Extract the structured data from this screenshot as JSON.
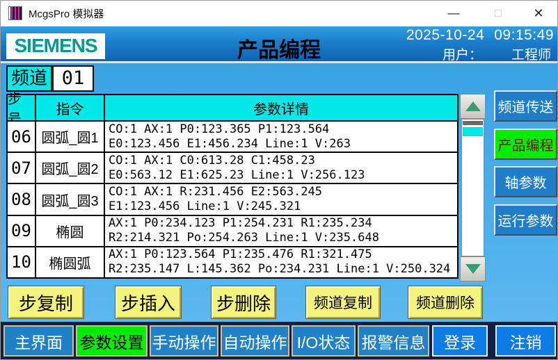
{
  "window": {
    "title": "McgsPro 模拟器",
    "minimize_glyph": "—",
    "maximize_glyph": "□",
    "close_glyph": "✕"
  },
  "header": {
    "brand": "SIEMENS",
    "title": "产品编程",
    "date": "2025-10-24",
    "time": "09:15:49",
    "user_label": "用户：",
    "user_name": "工程师"
  },
  "channel": {
    "label": "频道",
    "value": "01"
  },
  "table": {
    "columns": [
      "步号",
      "指令",
      "参数详情"
    ],
    "rows": [
      {
        "step": "06",
        "cmd": "圆弧_圆1",
        "line1": "CO:1 AX:1 P0:123.365 P1:123.564",
        "line2": "E0:123.456 E1:456.234 Line:1 V:263"
      },
      {
        "step": "07",
        "cmd": "圆弧_圆2",
        "line1": "CO:1 AX:1 C0:613.28 C1:458.23",
        "line2": "E0:563.12 E1:625.23 Line:1 V:256.123"
      },
      {
        "step": "08",
        "cmd": "圆弧_圆3",
        "line1": "CO:1 AX:1 R:231.456 E2:563.245",
        "line2": "E1:123.456 Line:1 V:245.321"
      },
      {
        "step": "09",
        "cmd": "椭圆",
        "line1": "AX:1 P0:234.123 P1:254.231 R1:235.234",
        "line2": "R2:214.321 Po:254.263 Line:1 V:235.648"
      },
      {
        "step": "10",
        "cmd": "椭圆弧",
        "line1": "AX:1 P0:123.564 P1:235.476 R1:321.475",
        "line2": "R2:235.147 L:145.362 Po:234.231 Line:1 V:250.324"
      }
    ]
  },
  "sidebar": {
    "items": [
      {
        "label": "频道传送",
        "active": false
      },
      {
        "label": "产品编程",
        "active": true
      },
      {
        "label": "轴参数",
        "active": false
      },
      {
        "label": "运行参数",
        "active": false
      }
    ]
  },
  "actions": {
    "items": [
      {
        "label": "步复制"
      },
      {
        "label": "步插入"
      },
      {
        "label": "步删除"
      },
      {
        "label": "频道复制"
      },
      {
        "label": "频道删除"
      }
    ]
  },
  "nav": {
    "items": [
      {
        "label": "主界面",
        "active": false
      },
      {
        "label": "参数设置",
        "active": true
      },
      {
        "label": "手动操作",
        "active": false
      },
      {
        "label": "自动操作",
        "active": false
      },
      {
        "label": "I/O状态",
        "active": false
      },
      {
        "label": "报警信息",
        "active": false
      },
      {
        "label": "登录",
        "active": false
      },
      {
        "label": "注销",
        "active": false
      }
    ]
  },
  "colors": {
    "header_blue": "#1b7ecd",
    "panel_blue": "#4daeea",
    "cyan": "#00e9e9",
    "active_green": "#00ec00",
    "action_yellow": "#f3f37e",
    "button_blue": "#1f7dca",
    "nav_navy": "#132041",
    "scroll_arrow_green": "#3a9b78",
    "siemens_teal": "#009999"
  }
}
